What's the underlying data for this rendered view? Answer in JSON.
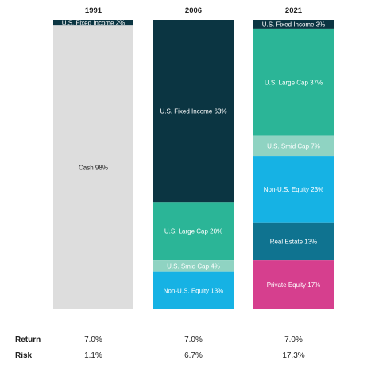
{
  "chart_data": {
    "type": "bar",
    "stacked": true,
    "percent_stacked": true,
    "categories": [
      "1991",
      "2006",
      "2021"
    ],
    "columns": [
      {
        "year": "1991",
        "segments": [
          {
            "label": "U.S. Fixed Income 2%",
            "value": 2,
            "color": "#0b3542",
            "text_color": "#ffffff"
          },
          {
            "label": "Cash 98%",
            "value": 98,
            "color": "#dddddd",
            "text_color": "#222222"
          }
        ]
      },
      {
        "year": "2006",
        "segments": [
          {
            "label": "U.S. Fixed Income 63%",
            "value": 63,
            "color": "#0b3542",
            "text_color": "#ffffff"
          },
          {
            "label": "U.S. Large Cap 20%",
            "value": 20,
            "color": "#2bb597",
            "text_color": "#ffffff"
          },
          {
            "label": "U.S. Smid Cap 4%",
            "value": 4,
            "color": "#8fd3c2",
            "text_color": "#ffffff"
          },
          {
            "label": "Non-U.S. Equity 13%",
            "value": 13,
            "color": "#16b2e4",
            "text_color": "#ffffff"
          }
        ]
      },
      {
        "year": "2021",
        "segments": [
          {
            "label": "U.S. Fixed Income 3%",
            "value": 3,
            "color": "#0b3542",
            "text_color": "#ffffff"
          },
          {
            "label": "U.S. Large Cap 37%",
            "value": 37,
            "color": "#2bb597",
            "text_color": "#ffffff"
          },
          {
            "label": "U.S. Smid Cap 7%",
            "value": 7,
            "color": "#8fd3c2",
            "text_color": "#ffffff"
          },
          {
            "label": "Non-U.S. Equity 23%",
            "value": 23,
            "color": "#16b2e4",
            "text_color": "#ffffff"
          },
          {
            "label": "Real Estate 13%",
            "value": 13,
            "color": "#0f7390",
            "text_color": "#ffffff"
          },
          {
            "label": "Private Equity 17%",
            "value": 17,
            "color": "#d63f8e",
            "text_color": "#ffffff"
          }
        ]
      }
    ],
    "rows": [
      {
        "label": "Return",
        "values": [
          "7.0%",
          "7.0%",
          "7.0%"
        ]
      },
      {
        "label": "Risk",
        "values": [
          "1.1%",
          "6.7%",
          "17.3%"
        ]
      }
    ],
    "ylim": [
      0,
      100
    ],
    "grid": false
  }
}
